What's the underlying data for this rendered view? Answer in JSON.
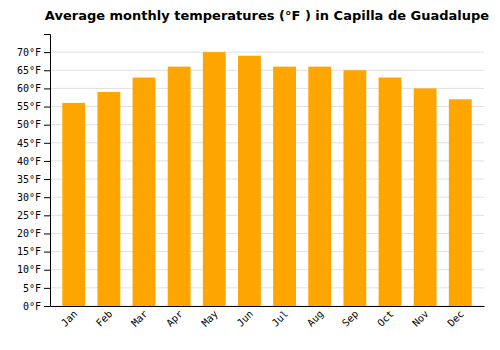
{
  "chart_data": {
    "type": "bar",
    "title": "Average monthly temperatures (°F ) in Capilla de Guadalupe",
    "categories": [
      "Jan",
      "Feb",
      "Mar",
      "Apr",
      "May",
      "Jun",
      "Jul",
      "Aug",
      "Sep",
      "Oct",
      "Nov",
      "Dec"
    ],
    "values": [
      56,
      59,
      63,
      66,
      70,
      69,
      66,
      66,
      65,
      63,
      60,
      57
    ],
    "color": "#FFA500",
    "ylim": [
      0,
      75
    ],
    "yticks": [
      {
        "value": 0,
        "label": "0°F"
      },
      {
        "value": 5,
        "label": "5°F"
      },
      {
        "value": 10,
        "label": "10°F"
      },
      {
        "value": 15,
        "label": "15°F"
      },
      {
        "value": 20,
        "label": "20°F"
      },
      {
        "value": 25,
        "label": "25°F"
      },
      {
        "value": 30,
        "label": "30°F"
      },
      {
        "value": 35,
        "label": "35°F"
      },
      {
        "value": 40,
        "label": "40°F"
      },
      {
        "value": 45,
        "label": "45°F"
      },
      {
        "value": 50,
        "label": "50°F"
      },
      {
        "value": 55,
        "label": "55°F"
      },
      {
        "value": 60,
        "label": "60°F"
      },
      {
        "value": 65,
        "label": "65°F"
      },
      {
        "value": 70,
        "label": "70°F"
      }
    ],
    "grid": true
  }
}
